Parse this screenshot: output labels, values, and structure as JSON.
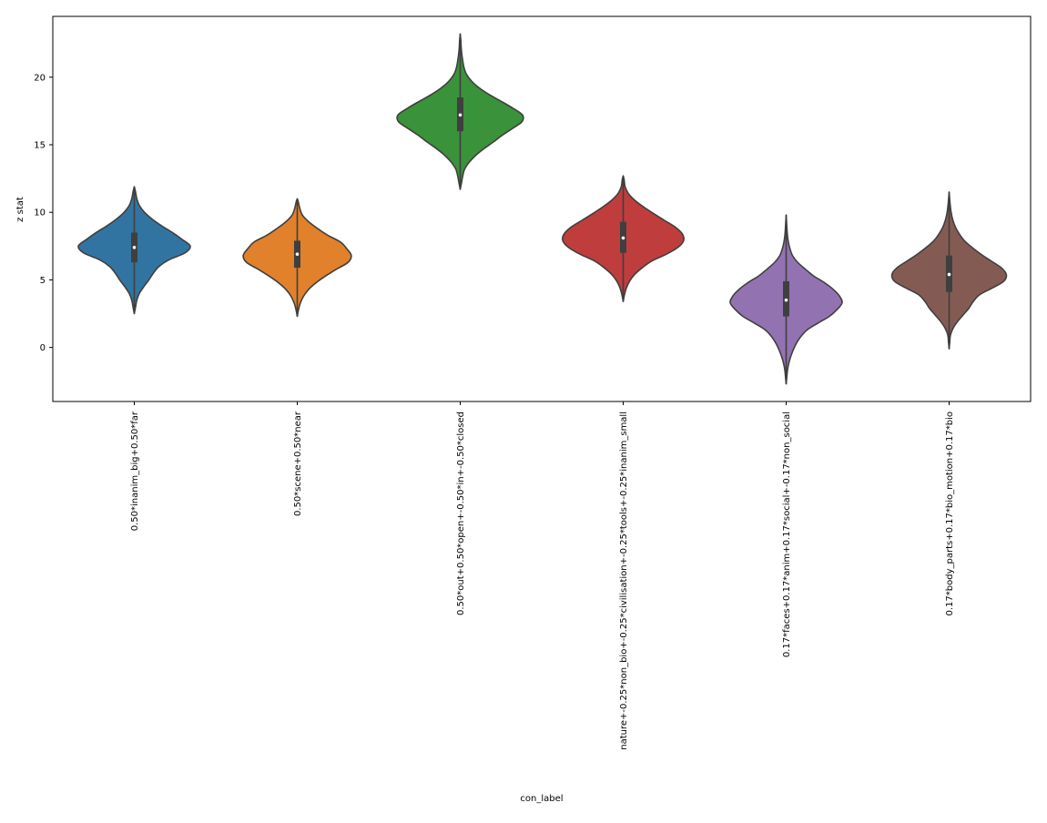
{
  "chart_data": {
    "type": "violin",
    "title": "",
    "xlabel": "con_label",
    "ylabel": "z stat",
    "ylim": [
      -4,
      24.5
    ],
    "yticks": [
      0,
      5,
      10,
      15,
      20
    ],
    "categories": [
      "0.50*inanim_big+0.50*far",
      "0.50*scene+0.50*near",
      "0.50*out+0.50*open+-0.50*in+-0.50*closed",
      "nature+-0.25*non_bio+-0.25*civilisation+-0.25*tools+-0.25*inanim_small",
      "0.17*faces+0.17*anim+0.17*social+-0.17*non_social",
      "0.17*body_parts+0.17*bio_motion+0.17*bio"
    ],
    "colors": [
      "#3274a1",
      "#e1812c",
      "#3a923a",
      "#c03d3e",
      "#9372b2",
      "#845b53"
    ],
    "series": [
      {
        "name": "0.50*inanim_big+0.50*far",
        "min": 2.5,
        "max": 11.9,
        "q1": 6.3,
        "median": 7.4,
        "q3": 8.5,
        "profile": [
          [
            2.5,
            0
          ],
          [
            3.0,
            0.02
          ],
          [
            3.5,
            0.04
          ],
          [
            4.0,
            0.08
          ],
          [
            4.5,
            0.15
          ],
          [
            5.0,
            0.23
          ],
          [
            5.5,
            0.3
          ],
          [
            6.0,
            0.39
          ],
          [
            6.5,
            0.55
          ],
          [
            7.0,
            0.8
          ],
          [
            7.5,
            0.88
          ],
          [
            8.0,
            0.75
          ],
          [
            8.5,
            0.6
          ],
          [
            9.0,
            0.43
          ],
          [
            9.5,
            0.28
          ],
          [
            10.0,
            0.16
          ],
          [
            10.5,
            0.08
          ],
          [
            11.0,
            0.04
          ],
          [
            11.5,
            0.02
          ],
          [
            11.9,
            0
          ]
        ]
      },
      {
        "name": "0.50*scene+0.50*near",
        "min": 2.3,
        "max": 11.0,
        "q1": 5.9,
        "median": 6.9,
        "q3": 7.9,
        "profile": [
          [
            2.3,
            0
          ],
          [
            2.8,
            0.02
          ],
          [
            3.3,
            0.05
          ],
          [
            3.8,
            0.1
          ],
          [
            4.3,
            0.18
          ],
          [
            4.8,
            0.3
          ],
          [
            5.3,
            0.45
          ],
          [
            5.8,
            0.62
          ],
          [
            6.3,
            0.8
          ],
          [
            6.8,
            0.85
          ],
          [
            7.3,
            0.78
          ],
          [
            7.8,
            0.68
          ],
          [
            8.3,
            0.48
          ],
          [
            8.8,
            0.32
          ],
          [
            9.3,
            0.18
          ],
          [
            9.8,
            0.08
          ],
          [
            10.3,
            0.04
          ],
          [
            10.8,
            0.015
          ],
          [
            11.0,
            0
          ]
        ]
      },
      {
        "name": "0.50*out+0.50*open+-0.50*in+-0.50*closed",
        "min": 11.7,
        "max": 23.2,
        "q1": 16.0,
        "median": 17.2,
        "q3": 18.5,
        "profile": [
          [
            11.7,
            0
          ],
          [
            12.2,
            0.02
          ],
          [
            12.7,
            0.04
          ],
          [
            13.2,
            0.07
          ],
          [
            13.7,
            0.14
          ],
          [
            14.2,
            0.24
          ],
          [
            14.7,
            0.37
          ],
          [
            15.2,
            0.52
          ],
          [
            15.7,
            0.66
          ],
          [
            16.2,
            0.82
          ],
          [
            16.7,
            0.97
          ],
          [
            17.2,
            0.98
          ],
          [
            17.7,
            0.83
          ],
          [
            18.2,
            0.65
          ],
          [
            18.7,
            0.46
          ],
          [
            19.2,
            0.3
          ],
          [
            19.7,
            0.18
          ],
          [
            20.2,
            0.1
          ],
          [
            20.7,
            0.06
          ],
          [
            21.2,
            0.04
          ],
          [
            21.7,
            0.025
          ],
          [
            22.2,
            0.015
          ],
          [
            22.7,
            0.01
          ],
          [
            23.2,
            0
          ]
        ]
      },
      {
        "name": "nature+-0.25*non_bio+-0.25*civilisation+-0.25*tools+-0.25*inanim_small",
        "min": 3.4,
        "max": 12.7,
        "q1": 7.0,
        "median": 8.1,
        "q3": 9.3,
        "profile": [
          [
            3.4,
            0
          ],
          [
            3.9,
            0.02
          ],
          [
            4.4,
            0.05
          ],
          [
            4.9,
            0.1
          ],
          [
            5.4,
            0.18
          ],
          [
            5.9,
            0.3
          ],
          [
            6.4,
            0.45
          ],
          [
            6.9,
            0.68
          ],
          [
            7.4,
            0.86
          ],
          [
            7.9,
            0.95
          ],
          [
            8.4,
            0.93
          ],
          [
            8.9,
            0.82
          ],
          [
            9.4,
            0.65
          ],
          [
            9.9,
            0.48
          ],
          [
            10.4,
            0.32
          ],
          [
            10.9,
            0.18
          ],
          [
            11.4,
            0.08
          ],
          [
            11.9,
            0.03
          ],
          [
            12.4,
            0.015
          ],
          [
            12.7,
            0
          ]
        ]
      },
      {
        "name": "0.17*faces+0.17*anim+0.17*social+-0.17*non_social",
        "min": -2.7,
        "max": 9.8,
        "q1": 2.3,
        "median": 3.5,
        "q3": 4.9,
        "profile": [
          [
            -2.7,
            0
          ],
          [
            -2.2,
            0.01
          ],
          [
            -1.7,
            0.02
          ],
          [
            -1.2,
            0.04
          ],
          [
            -0.7,
            0.07
          ],
          [
            -0.2,
            0.11
          ],
          [
            0.3,
            0.16
          ],
          [
            0.8,
            0.23
          ],
          [
            1.3,
            0.33
          ],
          [
            1.8,
            0.5
          ],
          [
            2.3,
            0.68
          ],
          [
            2.8,
            0.8
          ],
          [
            3.3,
            0.88
          ],
          [
            3.8,
            0.84
          ],
          [
            4.3,
            0.74
          ],
          [
            4.8,
            0.6
          ],
          [
            5.3,
            0.43
          ],
          [
            5.8,
            0.3
          ],
          [
            6.3,
            0.18
          ],
          [
            6.8,
            0.1
          ],
          [
            7.3,
            0.06
          ],
          [
            7.8,
            0.035
          ],
          [
            8.3,
            0.02
          ],
          [
            8.8,
            0.012
          ],
          [
            9.3,
            0.006
          ],
          [
            9.8,
            0
          ]
        ]
      },
      {
        "name": "0.17*body_parts+0.17*bio_motion+0.17*bio",
        "min": -0.1,
        "max": 11.5,
        "q1": 4.1,
        "median": 5.4,
        "q3": 6.8,
        "profile": [
          [
            -0.1,
            0
          ],
          [
            0.4,
            0.01
          ],
          [
            0.9,
            0.02
          ],
          [
            1.4,
            0.06
          ],
          [
            1.9,
            0.13
          ],
          [
            2.4,
            0.22
          ],
          [
            2.9,
            0.31
          ],
          [
            3.4,
            0.38
          ],
          [
            3.9,
            0.48
          ],
          [
            4.4,
            0.68
          ],
          [
            4.9,
            0.86
          ],
          [
            5.4,
            0.9
          ],
          [
            5.9,
            0.82
          ],
          [
            6.4,
            0.66
          ],
          [
            6.9,
            0.5
          ],
          [
            7.4,
            0.36
          ],
          [
            7.9,
            0.24
          ],
          [
            8.4,
            0.16
          ],
          [
            8.9,
            0.1
          ],
          [
            9.4,
            0.06
          ],
          [
            9.9,
            0.035
          ],
          [
            10.4,
            0.02
          ],
          [
            10.9,
            0.01
          ],
          [
            11.5,
            0
          ]
        ]
      }
    ]
  }
}
